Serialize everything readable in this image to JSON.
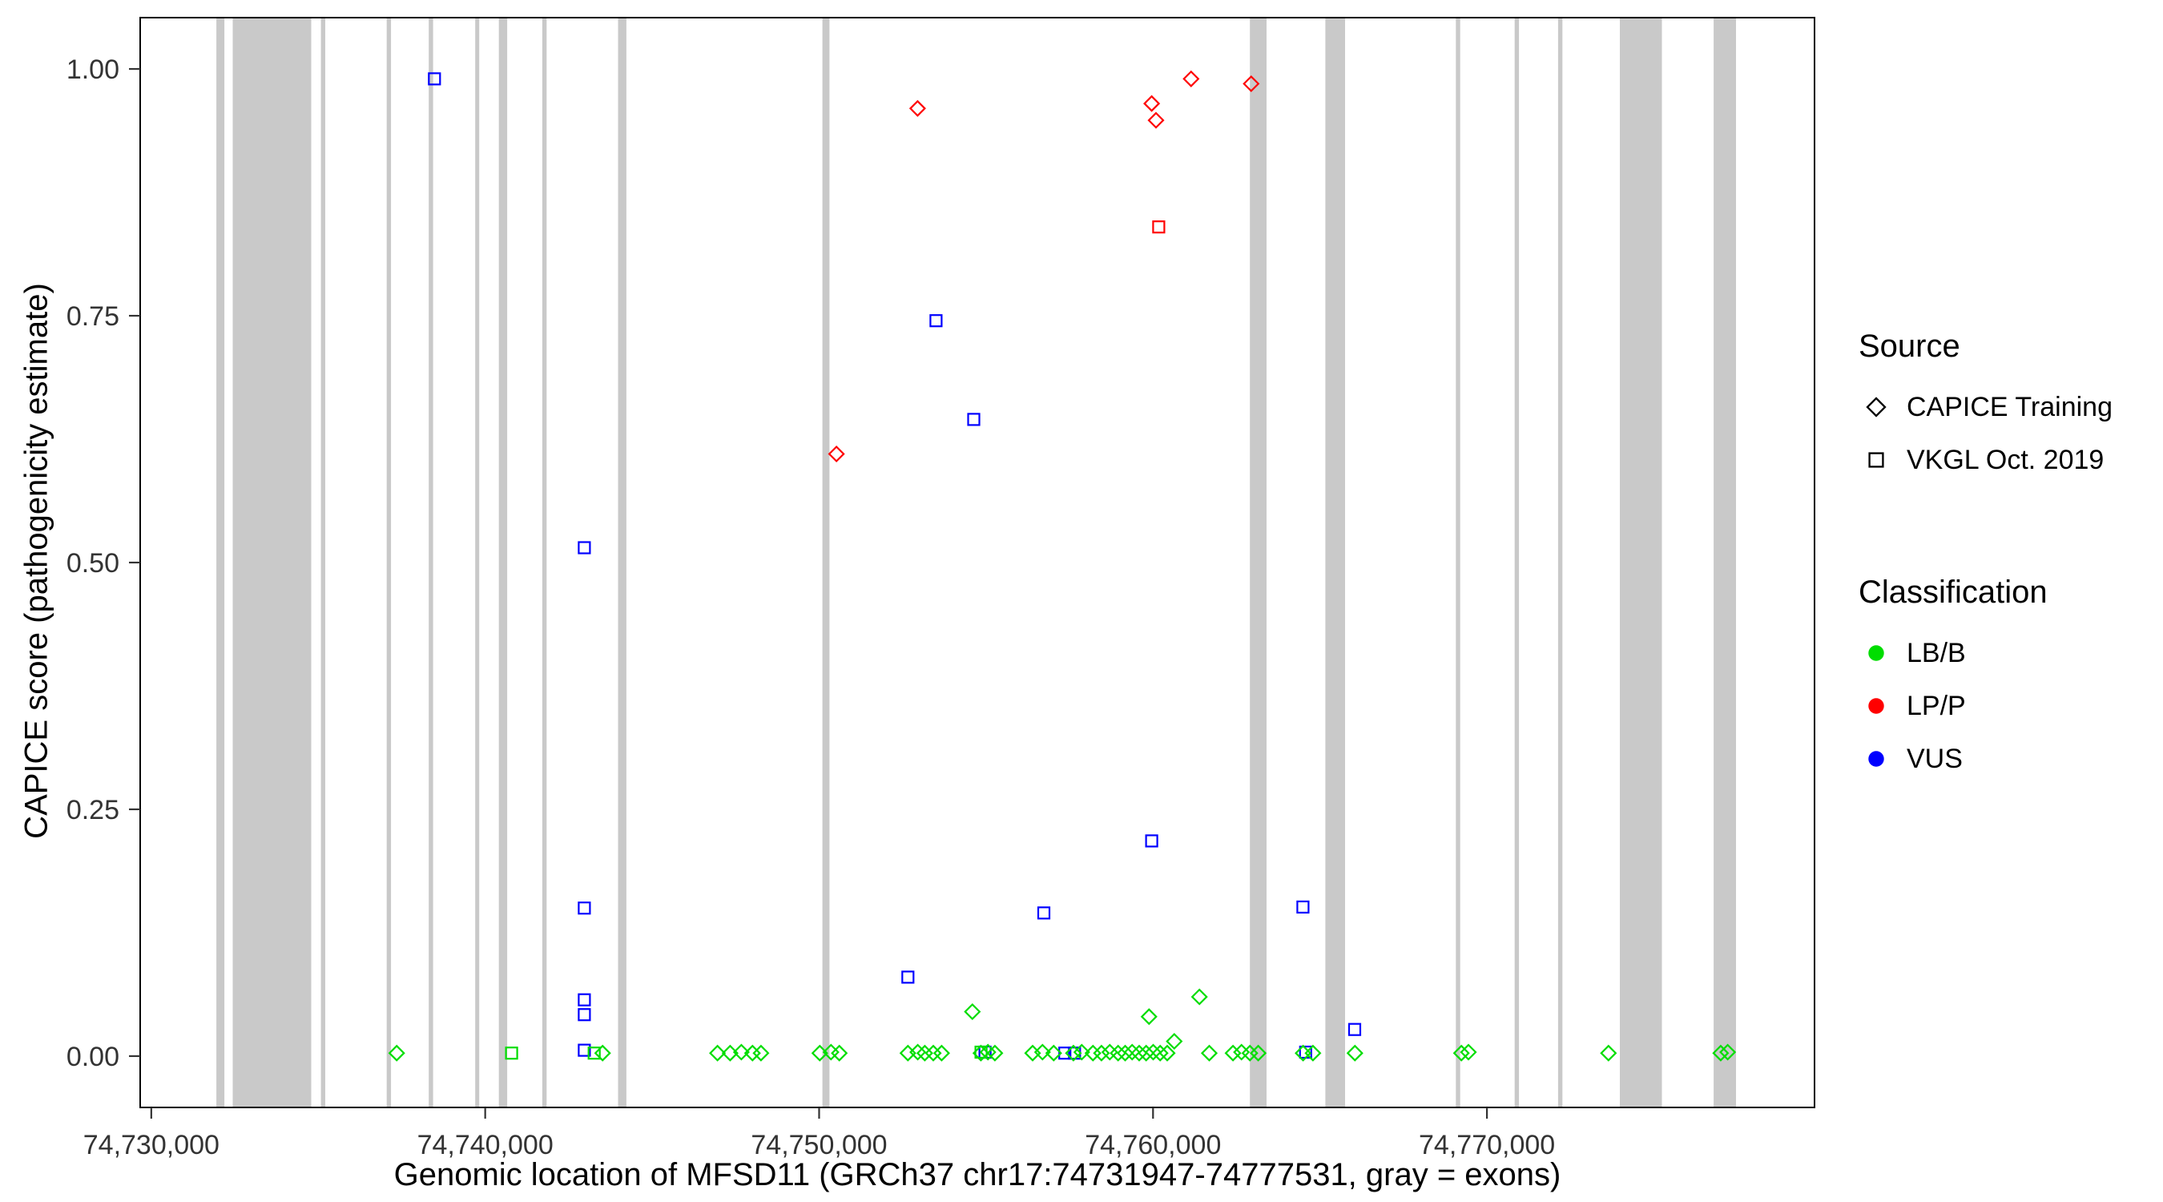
{
  "chart_data": {
    "type": "scatter",
    "title": "",
    "xlabel": "Genomic location of MFSD11 (GRCh37 chr17:74731947-74777531, gray = exons)",
    "ylabel": "CAPICE score (pathogenicity estimate)",
    "xlim": [
      74729668,
      74779810
    ],
    "ylim": [
      -0.052,
      1.052
    ],
    "grid": "off",
    "legend_position": "right",
    "x_ticks": {
      "values": [
        74730000,
        74740000,
        74750000,
        74760000,
        74770000
      ],
      "labels": [
        "74,730,000",
        "74,740,000",
        "74,750,000",
        "74,760,000",
        "74,770,000"
      ]
    },
    "y_ticks": {
      "values": [
        0,
        0.25,
        0.5,
        0.75,
        1
      ],
      "labels": [
        "0.00",
        "0.25",
        "0.50",
        "0.75",
        "1.00"
      ]
    },
    "exon_color": "#C9C9C9",
    "exons": [
      [
        74731950,
        74732190
      ],
      [
        74732440,
        74734790
      ],
      [
        74735080,
        74735210
      ],
      [
        74737050,
        74737180
      ],
      [
        74738310,
        74738440
      ],
      [
        74739700,
        74739820
      ],
      [
        74740410,
        74740660
      ],
      [
        74741710,
        74741840
      ],
      [
        74743980,
        74744230
      ],
      [
        74750100,
        74750310
      ],
      [
        74762900,
        74763400
      ],
      [
        74765160,
        74765750
      ],
      [
        74769070,
        74769200
      ],
      [
        74770830,
        74770960
      ],
      [
        74772130,
        74772260
      ],
      [
        74773980,
        74775240
      ],
      [
        74776790,
        74777460
      ]
    ],
    "series": [
      {
        "name": "CAPICE Training / LP-P",
        "source": "CAPICE Training",
        "classification": "LP/P",
        "marker": "diamond",
        "color": "#FF0000",
        "points": [
          [
            74750520,
            0.61
          ],
          [
            74752950,
            0.96
          ],
          [
            74759960,
            0.965
          ],
          [
            74760090,
            0.948
          ],
          [
            74761140,
            0.99
          ],
          [
            74762940,
            0.985
          ]
        ]
      },
      {
        "name": "VKGL Oct. 2019 / LP-P",
        "source": "VKGL Oct. 2019",
        "classification": "LP/P",
        "marker": "square",
        "color": "#FF0000",
        "points": [
          [
            74760170,
            0.84
          ]
        ]
      },
      {
        "name": "VKGL Oct. 2019 / VUS",
        "source": "VKGL Oct. 2019",
        "classification": "VUS",
        "marker": "square",
        "color": "#0000FF",
        "points": [
          [
            74738480,
            0.99
          ],
          [
            74742970,
            0.515
          ],
          [
            74742970,
            0.15
          ],
          [
            74742970,
            0.057
          ],
          [
            74742970,
            0.042
          ],
          [
            74742970,
            0.006
          ],
          [
            74752660,
            0.08
          ],
          [
            74753500,
            0.745
          ],
          [
            74754630,
            0.645
          ],
          [
            74754970,
            0.004
          ],
          [
            74756730,
            0.145
          ],
          [
            74757360,
            0.003
          ],
          [
            74757650,
            0.003
          ],
          [
            74759960,
            0.218
          ],
          [
            74764490,
            0.151
          ],
          [
            74764570,
            0.004
          ],
          [
            74766040,
            0.027
          ]
        ]
      },
      {
        "name": "CAPICE Training / LB-B",
        "source": "CAPICE Training",
        "classification": "LB/B",
        "marker": "diamond",
        "color": "#00DD00",
        "points": [
          [
            74737350,
            0.003
          ],
          [
            74743515,
            0.003
          ],
          [
            74746955,
            0.003
          ],
          [
            74747335,
            0.003
          ],
          [
            74747670,
            0.004
          ],
          [
            74748005,
            0.003
          ],
          [
            74748260,
            0.003
          ],
          [
            74750020,
            0.003
          ],
          [
            74750355,
            0.004
          ],
          [
            74750605,
            0.003
          ],
          [
            74752660,
            0.003
          ],
          [
            74752955,
            0.004
          ],
          [
            74753165,
            0.003
          ],
          [
            74753420,
            0.003
          ],
          [
            74753670,
            0.003
          ],
          [
            74754590,
            0.045
          ],
          [
            74754845,
            0.003
          ],
          [
            74755055,
            0.004
          ],
          [
            74755265,
            0.003
          ],
          [
            74756395,
            0.003
          ],
          [
            74756690,
            0.004
          ],
          [
            74757025,
            0.003
          ],
          [
            74757615,
            0.003
          ],
          [
            74757865,
            0.004
          ],
          [
            74758200,
            0.003
          ],
          [
            74758455,
            0.003
          ],
          [
            74758705,
            0.004
          ],
          [
            74758955,
            0.003
          ],
          [
            74759165,
            0.003
          ],
          [
            74759375,
            0.004
          ],
          [
            74759585,
            0.003
          ],
          [
            74759795,
            0.003
          ],
          [
            74759880,
            0.04
          ],
          [
            74760005,
            0.004
          ],
          [
            74760215,
            0.003
          ],
          [
            74760425,
            0.003
          ],
          [
            74760635,
            0.015
          ],
          [
            74761390,
            0.06
          ],
          [
            74761685,
            0.003
          ],
          [
            74762395,
            0.003
          ],
          [
            74762650,
            0.004
          ],
          [
            74762900,
            0.003
          ],
          [
            74763150,
            0.003
          ],
          [
            74764495,
            0.003
          ],
          [
            74764790,
            0.003
          ],
          [
            74766045,
            0.003
          ],
          [
            74769235,
            0.003
          ],
          [
            74769445,
            0.004
          ],
          [
            74773640,
            0.003
          ],
          [
            74777000,
            0.003
          ],
          [
            74777210,
            0.004
          ]
        ]
      },
      {
        "name": "VKGL Oct. 2019 / LB-B",
        "source": "VKGL Oct. 2019",
        "classification": "LB/B",
        "marker": "square",
        "color": "#00DD00",
        "points": [
          [
            74740790,
            0.003
          ],
          [
            74743265,
            0.003
          ],
          [
            74754850,
            0.004
          ]
        ]
      }
    ]
  },
  "legend": {
    "source": {
      "title": "Source",
      "items": [
        {
          "label": "CAPICE Training",
          "marker": "diamond"
        },
        {
          "label": "VKGL Oct. 2019",
          "marker": "square"
        }
      ]
    },
    "classification": {
      "title": "Classification",
      "items": [
        {
          "label": "LB/B",
          "color": "#00DD00"
        },
        {
          "label": "LP/P",
          "color": "#FF0000"
        },
        {
          "label": "VUS",
          "color": "#0000FF"
        }
      ]
    }
  }
}
